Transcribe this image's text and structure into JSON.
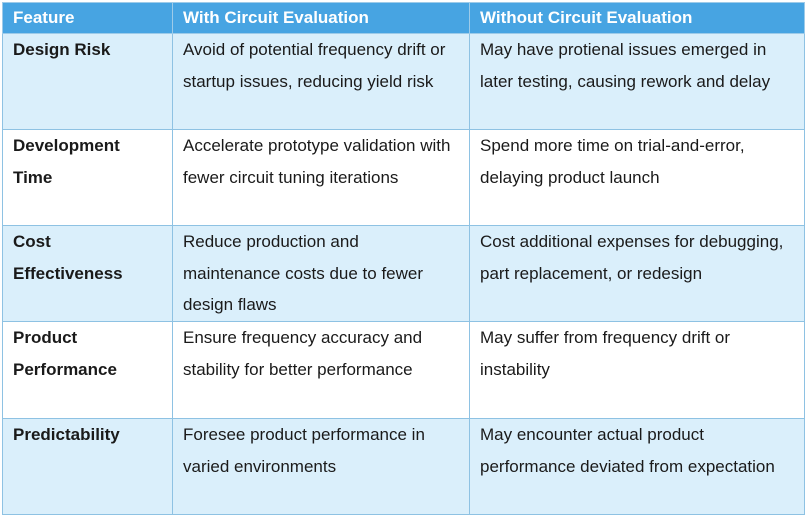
{
  "table": {
    "headers": [
      "Feature",
      "With Circuit Evaluation",
      "Without Circuit Evaluation"
    ],
    "rows": [
      {
        "feature": "Design Risk",
        "with": "Avoid of potential frequency drift or startup issues, reducing yield risk",
        "without": "May have protienal issues emerged in later testing, causing rework and delay"
      },
      {
        "feature": "Development Time",
        "with": "Accelerate prototype validation with fewer circuit tuning iterations",
        "without": "Spend more time on trial-and-error, delaying product launch"
      },
      {
        "feature": "Cost Effectiveness",
        "with": "Reduce production and maintenance costs due to fewer design flaws",
        "without": "Cost additional expenses for debugging, part replacement, or redesign"
      },
      {
        "feature": "Product Performance",
        "with": "Ensure frequency accuracy and stability for better performance",
        "without": "May suffer from frequency drift or instability"
      },
      {
        "feature": "Predictability",
        "with": "Foresee product performance in varied environments",
        "without": "May encounter actual product performance deviated from expectation"
      }
    ]
  },
  "colors": {
    "header_bg": "#47a4e2",
    "header_text": "#ffffff",
    "row_alt_bg": "#daeffb",
    "row_bg": "#ffffff",
    "border": "#8ec2e3"
  }
}
